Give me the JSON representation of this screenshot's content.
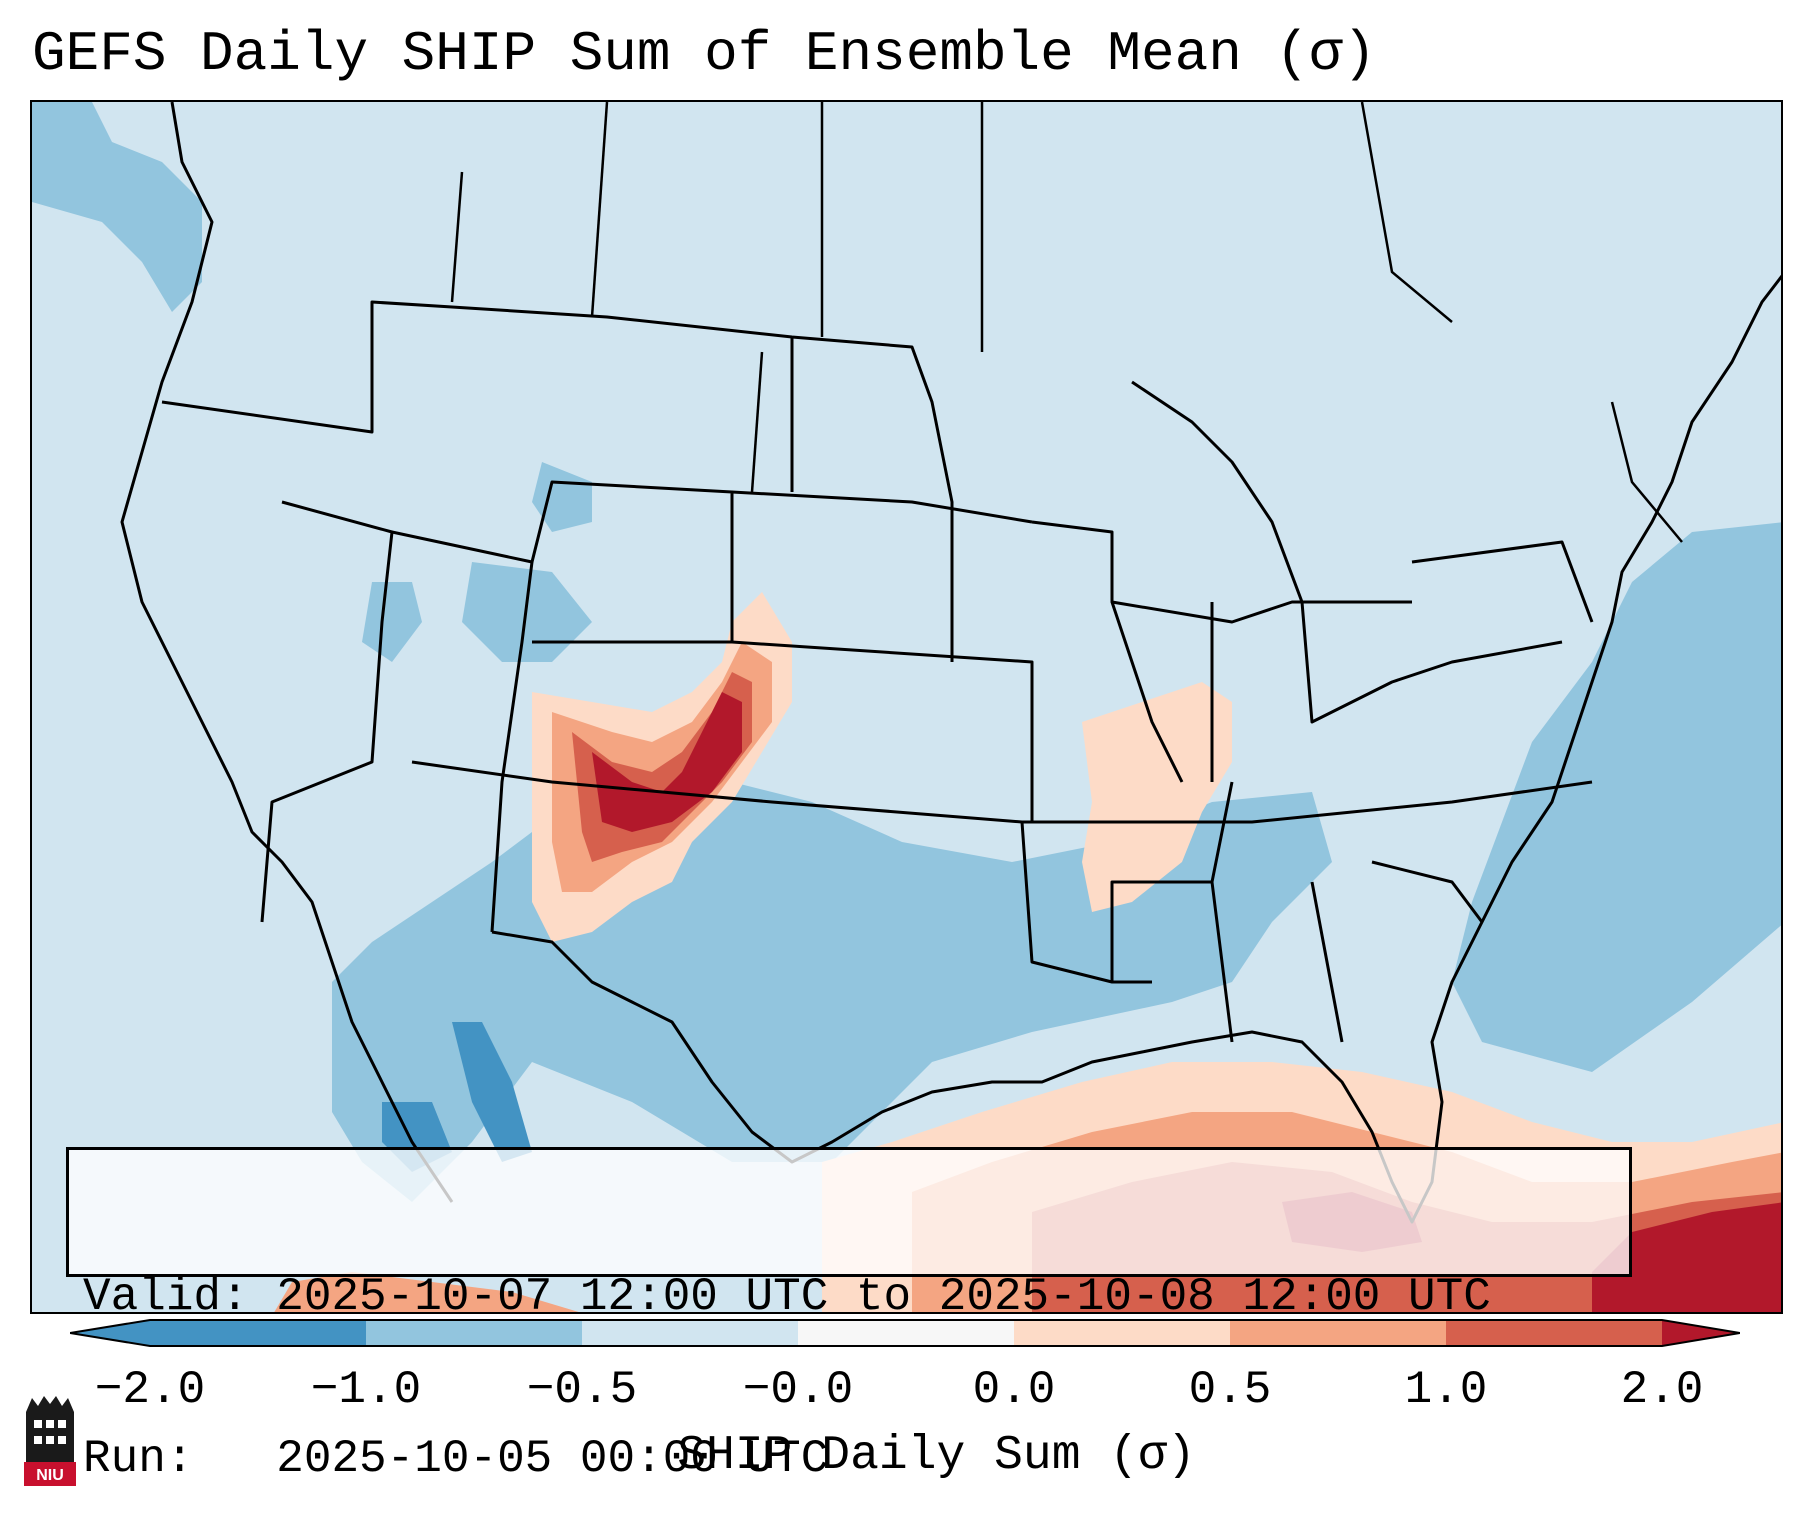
{
  "title": "GEFS Daily SHIP Sum of Ensemble Mean (σ)",
  "info": {
    "valid_line": "Valid: 2025-10-07 12:00 UTC to 2025-10-08 12:00 UTC",
    "run_line": "Run:   2025-10-05 00:00 UTC"
  },
  "colorbar": {
    "label": "SHIP Daily Sum (σ)",
    "tick_labels": [
      "−2.0",
      "−1.0",
      "−0.5",
      "−0.0",
      "0.0",
      "0.5",
      "1.0",
      "2.0"
    ],
    "colors": [
      "#4393c3",
      "#92c5de",
      "#d1e5f0",
      "#f7f7f7",
      "#fddbc7",
      "#f4a582",
      "#d6604d",
      "#b2182b"
    ],
    "extend": "both"
  },
  "map": {
    "region": "Contiguous United States, northern Mexico, Gulf of Mexico",
    "background_color": "#d1e5f0",
    "features": [
      "state-borders",
      "country-borders",
      "coastlines"
    ]
  },
  "logo": {
    "text": "NIU",
    "color": "#c8102e"
  }
}
